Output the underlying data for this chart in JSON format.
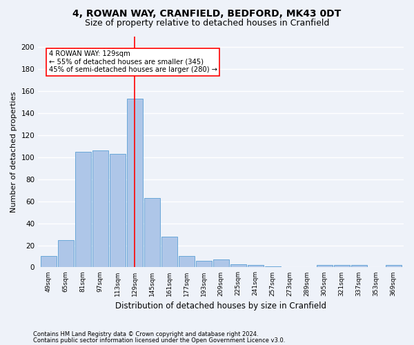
{
  "title1": "4, ROWAN WAY, CRANFIELD, BEDFORD, MK43 0DT",
  "title2": "Size of property relative to detached houses in Cranfield",
  "xlabel": "Distribution of detached houses by size in Cranfield",
  "ylabel": "Number of detached properties",
  "footnote1": "Contains HM Land Registry data © Crown copyright and database right 2024.",
  "footnote2": "Contains public sector information licensed under the Open Government Licence v3.0.",
  "bin_labels": [
    "49sqm",
    "65sqm",
    "81sqm",
    "97sqm",
    "113sqm",
    "129sqm",
    "145sqm",
    "161sqm",
    "177sqm",
    "193sqm",
    "209sqm",
    "225sqm",
    "241sqm",
    "257sqm",
    "273sqm",
    "289sqm",
    "305sqm",
    "321sqm",
    "337sqm",
    "353sqm",
    "369sqm"
  ],
  "bar_values": [
    10,
    25,
    105,
    106,
    103,
    153,
    63,
    28,
    10,
    6,
    7,
    3,
    2,
    1,
    0,
    0,
    2,
    2,
    2,
    0,
    2
  ],
  "bar_color": "#aec6e8",
  "bar_edge_color": "#5a9fd4",
  "red_line_index": 5,
  "annotation_text": "4 ROWAN WAY: 129sqm\n← 55% of detached houses are smaller (345)\n45% of semi-detached houses are larger (280) →",
  "annotation_box_color": "white",
  "annotation_box_edge": "red",
  "ylim": [
    0,
    210
  ],
  "yticks": [
    0,
    20,
    40,
    60,
    80,
    100,
    120,
    140,
    160,
    180,
    200
  ],
  "bg_color": "#eef2f9",
  "grid_color": "white",
  "title1_fontsize": 10,
  "title2_fontsize": 9,
  "xlabel_fontsize": 8.5,
  "ylabel_fontsize": 8
}
